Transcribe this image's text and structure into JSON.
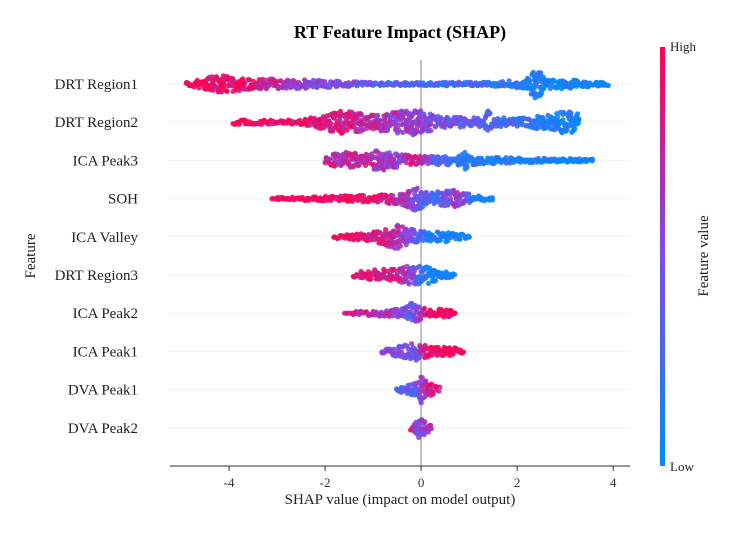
{
  "chart_data": {
    "type": "scatter",
    "subtype": "shap-beeswarm",
    "title": "RT Feature Impact (SHAP)",
    "xlabel": "SHAP value (impact on model output)",
    "ylabel": "Feature",
    "xlim": [
      -5.23,
      4.35
    ],
    "xticks": [
      -4,
      -2,
      0,
      2,
      4
    ],
    "xtick_labels": [
      "-4",
      "-2",
      "0",
      "2",
      "4"
    ],
    "grid": "horizontal dotted per feature",
    "colorbar": {
      "label": "Feature value",
      "high_label": "High",
      "low_label": "Low",
      "high_color": "#ff0052",
      "low_color": "#008bfb"
    },
    "point_description": "per feature: [shap value, relative point density 0-1, feature value 0(low)-1(high)] anchors along the swarm",
    "features": [
      {
        "name": "DRT Region1",
        "profile": [
          [
            -4.9,
            0.1,
            1
          ],
          [
            -4.2,
            0.6,
            0.95
          ],
          [
            -3.5,
            0.35,
            0.9
          ],
          [
            -2.5,
            0.3,
            0.6
          ],
          [
            -1,
            0.1,
            0.4
          ],
          [
            0,
            0.1,
            0.3
          ],
          [
            1.5,
            0.15,
            0.2
          ],
          [
            2.2,
            0.3,
            0.12
          ],
          [
            2.4,
            1.0,
            0.1
          ],
          [
            2.6,
            0.35,
            0.08
          ],
          [
            3,
            0.3,
            0.05
          ],
          [
            3.9,
            0.1,
            0
          ]
        ]
      },
      {
        "name": "DRT Region2",
        "profile": [
          [
            -3.9,
            0.15,
            1
          ],
          [
            -2.5,
            0.15,
            0.95
          ],
          [
            -1.7,
            0.8,
            0.85
          ],
          [
            -1,
            0.5,
            0.7
          ],
          [
            -0.2,
            0.9,
            0.6
          ],
          [
            0.5,
            0.35,
            0.45
          ],
          [
            1.3,
            0.3,
            0.35
          ],
          [
            1.4,
            0.8,
            0.35
          ],
          [
            1.5,
            0.3,
            0.3
          ],
          [
            2.2,
            0.3,
            0.2
          ],
          [
            3.1,
            0.8,
            0.05
          ],
          [
            3.3,
            0.6,
            0
          ]
        ]
      },
      {
        "name": "ICA Peak3",
        "profile": [
          [
            -2,
            0.2,
            0.8
          ],
          [
            -1.7,
            0.6,
            0.7
          ],
          [
            -1.1,
            0.4,
            0.8
          ],
          [
            -0.9,
            0.7,
            0.6
          ],
          [
            -0.4,
            0.4,
            0.6
          ],
          [
            -0.2,
            0.3,
            0.9
          ],
          [
            0.3,
            0.3,
            0.3
          ],
          [
            0.8,
            0.3,
            0.2
          ],
          [
            0.9,
            0.7,
            0.15
          ],
          [
            1.0,
            0.3,
            0.15
          ],
          [
            1.5,
            0.2,
            0.1
          ],
          [
            3.6,
            0.1,
            0
          ]
        ]
      },
      {
        "name": "SOH",
        "profile": [
          [
            -3.1,
            0.08,
            1
          ],
          [
            -2,
            0.15,
            1
          ],
          [
            -1,
            0.25,
            0.95
          ],
          [
            -0.4,
            0.4,
            0.7
          ],
          [
            -0.2,
            0.9,
            0.55
          ],
          [
            0.2,
            0.4,
            0.2
          ],
          [
            0.8,
            0.6,
            0.7
          ],
          [
            1.1,
            0.2,
            0.1
          ],
          [
            1.5,
            0.1,
            0
          ]
        ]
      },
      {
        "name": "ICA Valley",
        "profile": [
          [
            -1.8,
            0.1,
            1
          ],
          [
            -1,
            0.35,
            0.9
          ],
          [
            -0.5,
            0.8,
            0.7
          ],
          [
            -0.2,
            0.5,
            0.5
          ],
          [
            0.2,
            0.3,
            0.1
          ],
          [
            0.5,
            0.35,
            0.1
          ],
          [
            1,
            0.1,
            0
          ]
        ]
      },
      {
        "name": "DRT Region3",
        "profile": [
          [
            -1.4,
            0.15,
            0.9
          ],
          [
            -1,
            0.35,
            0.85
          ],
          [
            -0.5,
            0.4,
            0.8
          ],
          [
            -0.3,
            0.6,
            0.7
          ],
          [
            0.1,
            0.6,
            0.1
          ],
          [
            0.4,
            0.3,
            0.05
          ],
          [
            0.7,
            0.1,
            0
          ]
        ]
      },
      {
        "name": "ICA Peak2",
        "profile": [
          [
            -1.6,
            0.05,
            0.8
          ],
          [
            -1,
            0.2,
            0.8
          ],
          [
            -0.4,
            0.3,
            0.5
          ],
          [
            -0.2,
            0.7,
            0.3
          ],
          [
            0.1,
            0.3,
            0.9
          ],
          [
            0.7,
            0.25,
            1
          ]
        ]
      },
      {
        "name": "ICA Peak1",
        "profile": [
          [
            -0.8,
            0.1,
            0.6
          ],
          [
            -0.4,
            0.4,
            0.5
          ],
          [
            -0.1,
            0.6,
            0.4
          ],
          [
            0.1,
            0.4,
            0.9
          ],
          [
            0.9,
            0.2,
            1
          ]
        ]
      },
      {
        "name": "DVA Peak1",
        "profile": [
          [
            -0.5,
            0.15,
            0.3
          ],
          [
            -0.1,
            0.5,
            0.4
          ],
          [
            0,
            0.9,
            0.6
          ],
          [
            0.2,
            0.4,
            0.9
          ],
          [
            0.4,
            0.15,
            0.9
          ]
        ]
      },
      {
        "name": "DVA Peak2",
        "profile": [
          [
            -0.2,
            0.2,
            0.8
          ],
          [
            0,
            0.9,
            0.5
          ],
          [
            0.1,
            0.4,
            0.6
          ],
          [
            0.25,
            0.1,
            0.8
          ]
        ]
      }
    ]
  }
}
